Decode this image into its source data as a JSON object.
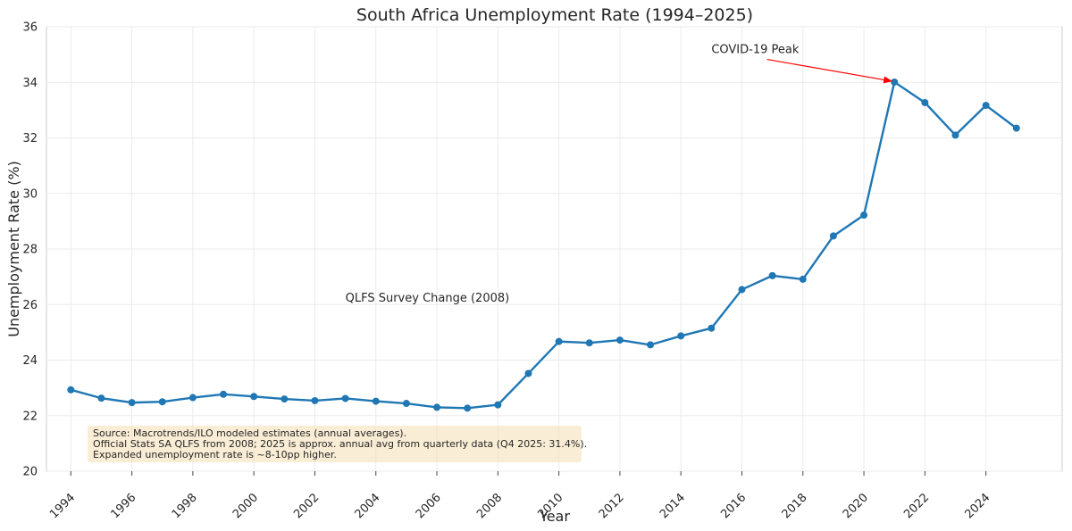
{
  "chart_data": {
    "type": "line",
    "title": "South Africa Unemployment Rate (1994–2025)",
    "xlabel": "Year",
    "ylabel": "Unemployment Rate (%)",
    "xlim": [
      1993.2,
      2026.5
    ],
    "ylim": [
      20,
      36
    ],
    "grid": true,
    "x_ticks": [
      1994,
      1996,
      1998,
      2000,
      2002,
      2004,
      2006,
      2008,
      2010,
      2012,
      2014,
      2016,
      2018,
      2020,
      2022,
      2024
    ],
    "y_ticks": [
      20,
      22,
      24,
      26,
      28,
      30,
      32,
      34,
      36
    ],
    "series": [
      {
        "color": "#1f77b4",
        "x": [
          1994,
          1995,
          1996,
          1997,
          1998,
          1999,
          2000,
          2001,
          2002,
          2003,
          2004,
          2005,
          2006,
          2007,
          2008,
          2009,
          2010,
          2011,
          2012,
          2013,
          2014,
          2015,
          2016,
          2017,
          2018,
          2019,
          2020,
          2021,
          2022,
          2023,
          2024,
          2025
        ],
        "y": [
          22.93,
          22.63,
          22.47,
          22.5,
          22.65,
          22.77,
          22.69,
          22.6,
          22.54,
          22.62,
          22.52,
          22.44,
          22.3,
          22.27,
          22.39,
          23.52,
          24.67,
          24.62,
          24.72,
          24.55,
          24.87,
          25.15,
          26.54,
          27.04,
          26.91,
          28.47,
          29.22,
          34.01,
          33.27,
          32.1,
          33.17,
          32.35
        ]
      }
    ],
    "annotations": [
      {
        "text": "COVID-19 Peak",
        "x": 2021,
        "y": 34.01,
        "text_x": 2015,
        "text_y": 35.05,
        "arrow": true,
        "arrow_color": "#ff0000"
      },
      {
        "text": "QLFS Survey Change (2008)",
        "text_x": 2003,
        "text_y": 26.1,
        "arrow": false
      }
    ],
    "source_note": [
      "Source: Macrotrends/ILO modeled estimates (annual averages).",
      "Official Stats SA QLFS from 2008; 2025 is approx. annual avg from quarterly data (Q4 2025: 31.4%).",
      "Expanded unemployment rate is ~8-10pp higher."
    ],
    "source_note_bg": "#f5deb3"
  }
}
